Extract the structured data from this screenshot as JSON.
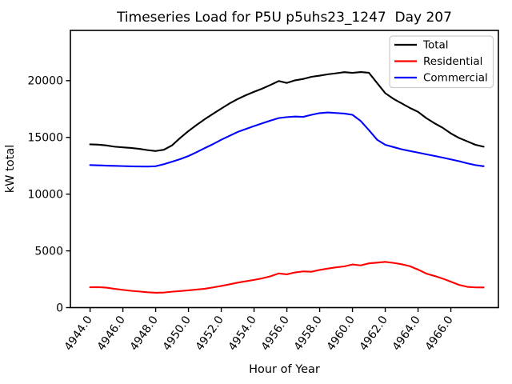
{
  "chart_data": {
    "type": "line",
    "title": "Timeseries Load for P5U p5uhs23_1247  Day 207",
    "xlabel": "Hour of Year",
    "ylabel": "kW total",
    "grid": false,
    "legend_position": "upper right",
    "xlim": [
      4942.8,
      4968.9
    ],
    "ylim": [
      0,
      24430
    ],
    "xticks": [
      4944,
      4946,
      4948,
      4950,
      4952,
      4954,
      4956,
      4958,
      4960,
      4962,
      4964,
      4966
    ],
    "xtick_labels": [
      "4944.0",
      "4946.0",
      "4948.0",
      "4950.0",
      "4952.0",
      "4954.0",
      "4956.0",
      "4958.0",
      "4960.0",
      "4962.0",
      "4964.0",
      "4966.0"
    ],
    "yticks": [
      0,
      5000,
      10000,
      15000,
      20000
    ],
    "ytick_labels": [
      "0",
      "5000",
      "10000",
      "15000",
      "20000"
    ],
    "x": [
      4944.0,
      4944.5,
      4945.0,
      4945.5,
      4946.0,
      4946.5,
      4947.0,
      4947.5,
      4948.0,
      4948.5,
      4949.0,
      4949.5,
      4950.0,
      4950.5,
      4951.0,
      4951.5,
      4952.0,
      4952.5,
      4953.0,
      4953.5,
      4954.0,
      4954.5,
      4955.0,
      4955.5,
      4956.0,
      4956.5,
      4957.0,
      4957.5,
      4958.0,
      4958.5,
      4959.0,
      4959.5,
      4960.0,
      4960.5,
      4961.0,
      4961.5,
      4962.0,
      4962.5,
      4963.0,
      4963.5,
      4964.0,
      4964.5,
      4965.0,
      4965.5,
      4966.0,
      4966.5,
      4967.0,
      4967.5,
      4968.0
    ],
    "series": [
      {
        "name": "Total",
        "color": "#000000",
        "values": [
          14390,
          14360,
          14290,
          14180,
          14120,
          14070,
          13990,
          13880,
          13800,
          13910,
          14300,
          14960,
          15560,
          16100,
          16610,
          17080,
          17540,
          17990,
          18380,
          18720,
          19020,
          19300,
          19620,
          19970,
          19800,
          20030,
          20150,
          20340,
          20440,
          20560,
          20650,
          20750,
          20690,
          20760,
          20700,
          19800,
          18900,
          18400,
          18000,
          17600,
          17250,
          16700,
          16250,
          15850,
          15350,
          14950,
          14650,
          14350,
          14180
        ]
      },
      {
        "name": "Residential",
        "color": "#ff0000",
        "values": [
          1790,
          1800,
          1760,
          1650,
          1560,
          1480,
          1420,
          1350,
          1310,
          1330,
          1400,
          1460,
          1520,
          1590,
          1660,
          1780,
          1910,
          2050,
          2200,
          2320,
          2440,
          2580,
          2760,
          3010,
          2930,
          3100,
          3190,
          3160,
          3320,
          3440,
          3550,
          3630,
          3800,
          3720,
          3900,
          3960,
          4030,
          3940,
          3820,
          3650,
          3350,
          3000,
          2790,
          2560,
          2280,
          2000,
          1830,
          1780,
          1775
        ]
      },
      {
        "name": "Commercial",
        "color": "#0000ff",
        "values": [
          12560,
          12540,
          12510,
          12490,
          12470,
          12450,
          12440,
          12430,
          12460,
          12640,
          12860,
          13090,
          13360,
          13700,
          14060,
          14410,
          14790,
          15140,
          15480,
          15740,
          16000,
          16240,
          16480,
          16700,
          16790,
          16840,
          16810,
          16990,
          17140,
          17200,
          17150,
          17100,
          16990,
          16450,
          15650,
          14800,
          14350,
          14150,
          13950,
          13800,
          13660,
          13510,
          13370,
          13220,
          13060,
          12900,
          12720,
          12560,
          12460
        ]
      }
    ]
  },
  "legend": {
    "entries": [
      "Total",
      "Residential",
      "Commercial"
    ]
  },
  "colors": {
    "background": "#ffffff",
    "axes": "#000000",
    "legend_border": "#cccccc"
  }
}
